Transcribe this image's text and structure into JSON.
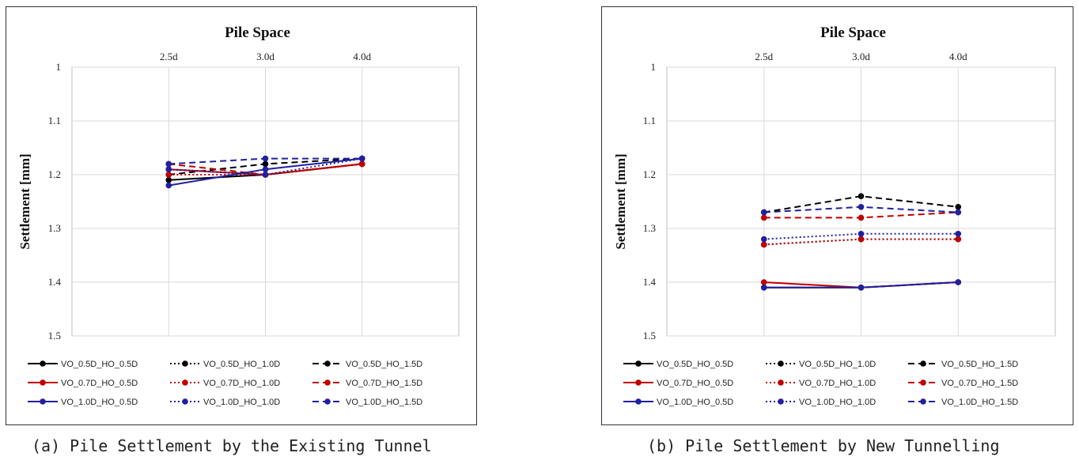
{
  "chart_data": [
    {
      "type": "line",
      "title": "Pile Space",
      "xlabel": "Pile Space",
      "ylabel": "Settlement [mm]",
      "categories": [
        "2.5d",
        "3.0d",
        "4.0d"
      ],
      "ylim": [
        1.5,
        1
      ],
      "y_inverted": true,
      "yticks": [
        "1",
        "1.1",
        "1.2",
        "1.3",
        "1.4",
        "1.5"
      ],
      "x_axis_position": "top",
      "grid": true,
      "legend": "bottom",
      "series": [
        {
          "name": "VO_0.5D_HO_0.5D",
          "color": "#000000",
          "dash": "solid",
          "values": [
            1.21,
            1.2,
            1.18
          ]
        },
        {
          "name": "VO_0.5D_HO_1.0D",
          "color": "#000000",
          "dash": "dotted",
          "values": [
            1.19,
            1.2,
            1.18
          ]
        },
        {
          "name": "VO_0.5D_HO_1.5D",
          "color": "#000000",
          "dash": "dashed",
          "values": [
            1.2,
            1.18,
            1.17
          ]
        },
        {
          "name": "VO_0.7D_HO_0.5D",
          "color": "#c00000",
          "dash": "solid",
          "values": [
            1.19,
            1.2,
            1.18
          ]
        },
        {
          "name": "VO_0.7D_HO_1.0D",
          "color": "#c00000",
          "dash": "dotted",
          "values": [
            1.2,
            1.2,
            1.18
          ]
        },
        {
          "name": "VO_0.7D_HO_1.5D",
          "color": "#c00000",
          "dash": "dashed",
          "values": [
            1.18,
            1.2,
            1.18
          ]
        },
        {
          "name": "VO_1.0D_HO_0.5D",
          "color": "#2020a0",
          "dash": "solid",
          "values": [
            1.22,
            1.19,
            1.17
          ]
        },
        {
          "name": "VO_1.0D_HO_1.0D",
          "color": "#2020a0",
          "dash": "dotted",
          "values": [
            1.19,
            1.2,
            1.17
          ]
        },
        {
          "name": "VO_1.0D_HO_1.5D",
          "color": "#2020a0",
          "dash": "dashed",
          "values": [
            1.18,
            1.17,
            1.17
          ]
        }
      ],
      "caption": "(a) Pile Settlement by the Existing Tunnel"
    },
    {
      "type": "line",
      "title": "Pile Space",
      "xlabel": "Pile Space",
      "ylabel": "Settlement [mm]",
      "categories": [
        "2.5d",
        "3.0d",
        "4.0d"
      ],
      "ylim": [
        1.5,
        1
      ],
      "y_inverted": true,
      "yticks": [
        "1",
        "1.1",
        "1.2",
        "1.3",
        "1.4",
        "1.5"
      ],
      "x_axis_position": "top",
      "grid": true,
      "legend": "bottom",
      "series": [
        {
          "name": "VO_0.5D_HO_0.5D",
          "color": "#000000",
          "dash": "solid",
          "values": [
            1.41,
            1.41,
            1.4
          ]
        },
        {
          "name": "VO_0.5D_HO_1.0D",
          "color": "#000000",
          "dash": "dotted",
          "values": [
            1.33,
            1.32,
            1.32
          ]
        },
        {
          "name": "VO_0.5D_HO_1.5D",
          "color": "#000000",
          "dash": "dashed",
          "values": [
            1.27,
            1.24,
            1.26
          ]
        },
        {
          "name": "VO_0.7D_HO_0.5D",
          "color": "#c00000",
          "dash": "solid",
          "values": [
            1.4,
            1.41,
            1.4
          ]
        },
        {
          "name": "VO_0.7D_HO_1.0D",
          "color": "#c00000",
          "dash": "dotted",
          "values": [
            1.33,
            1.32,
            1.32
          ]
        },
        {
          "name": "VO_0.7D_HO_1.5D",
          "color": "#c00000",
          "dash": "dashed",
          "values": [
            1.28,
            1.28,
            1.27
          ]
        },
        {
          "name": "VO_1.0D_HO_0.5D",
          "color": "#2020a0",
          "dash": "solid",
          "values": [
            1.41,
            1.41,
            1.4
          ]
        },
        {
          "name": "VO_1.0D_HO_1.0D",
          "color": "#2020a0",
          "dash": "dotted",
          "values": [
            1.32,
            1.31,
            1.31
          ]
        },
        {
          "name": "VO_1.0D_HO_1.5D",
          "color": "#2020a0",
          "dash": "dashed",
          "values": [
            1.27,
            1.26,
            1.27
          ]
        }
      ],
      "caption": "(b) Pile Settlement by New Tunnelling"
    }
  ]
}
